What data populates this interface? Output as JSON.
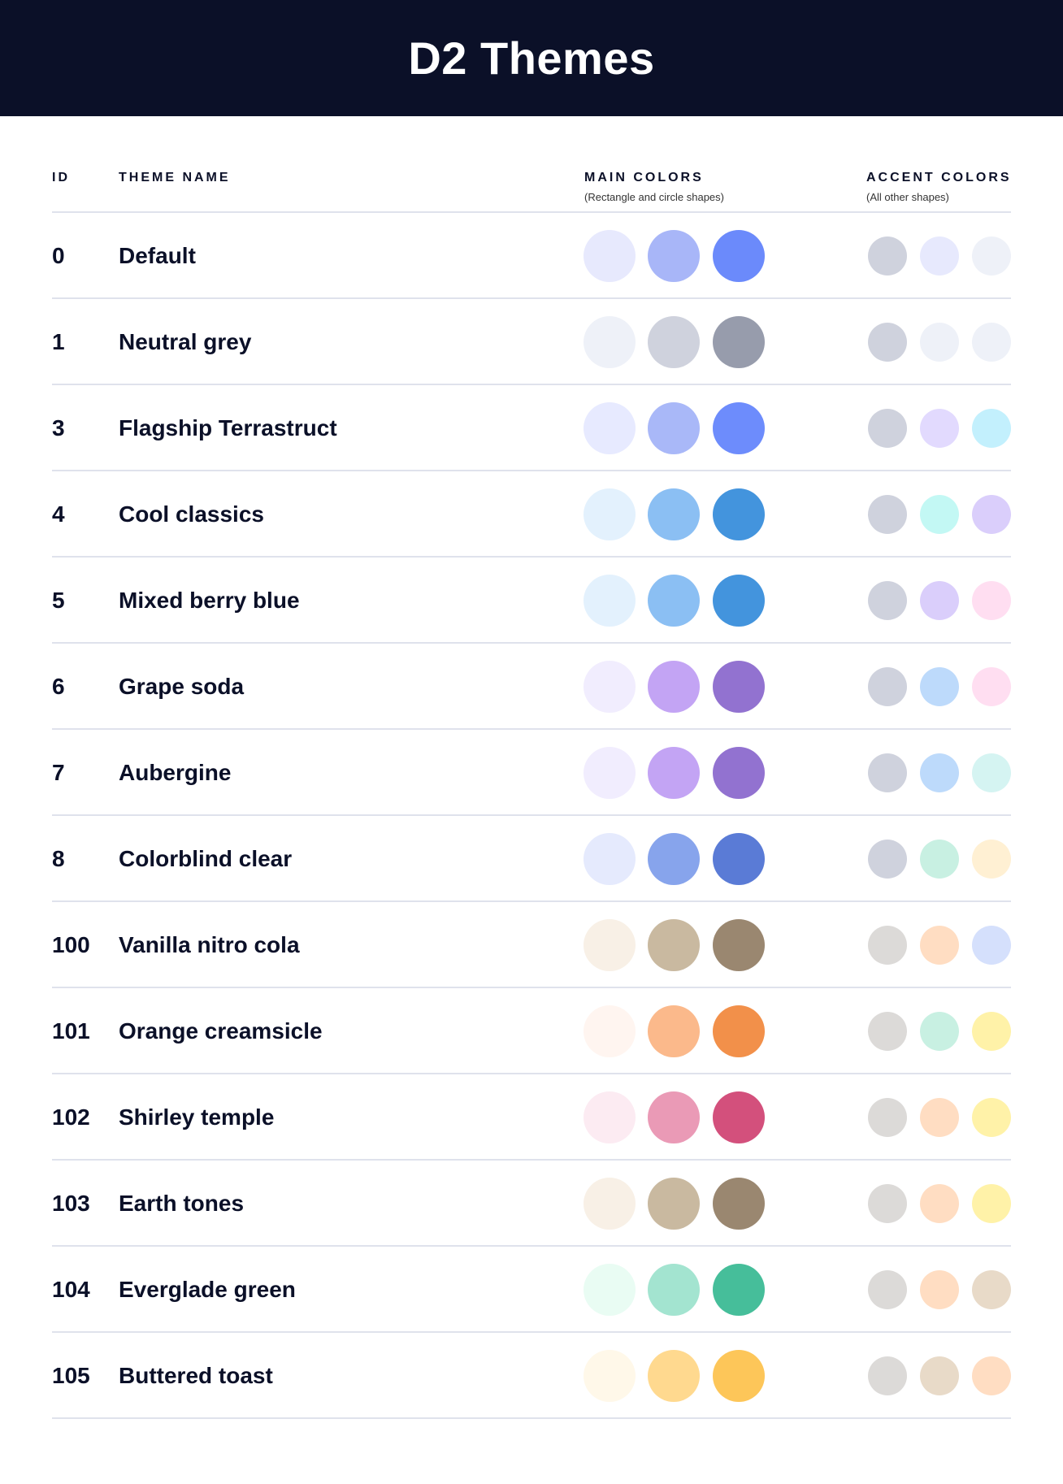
{
  "title": "D2 Themes",
  "columns": {
    "id": "ID",
    "name": "THEME NAME",
    "main": "MAIN COLORS",
    "main_sub": "(Rectangle and circle shapes)",
    "accent": "ACCENT COLORS",
    "accent_sub": "(All other shapes)"
  },
  "themes": [
    {
      "id": "0",
      "name": "Default",
      "main": [
        "#E7E9FD",
        "#A8B6F8",
        "#6B8AFB"
      ],
      "accent": [
        "#CFD2DD",
        "#E7E9FD",
        "#EEF1F8"
      ]
    },
    {
      "id": "1",
      "name": "Neutral grey",
      "main": [
        "#EEF1F8",
        "#CFD2DD",
        "#979CAC"
      ],
      "accent": [
        "#CFD2DD",
        "#EEF1F8",
        "#EEF1F8"
      ]
    },
    {
      "id": "3",
      "name": "Flagship Terrastruct",
      "main": [
        "#E7EAFF",
        "#A9B8F8",
        "#6D8CFC"
      ],
      "accent": [
        "#CFD2DD",
        "#E2DAFE",
        "#C3F0FD"
      ]
    },
    {
      "id": "4",
      "name": "Cool classics",
      "main": [
        "#E3F1FD",
        "#8BBFF3",
        "#4394DD"
      ],
      "accent": [
        "#CFD2DD",
        "#C3F8F4",
        "#DACEFB"
      ]
    },
    {
      "id": "5",
      "name": "Mixed berry blue",
      "main": [
        "#E3F1FD",
        "#8BBFF3",
        "#4394DD"
      ],
      "accent": [
        "#CFD2DD",
        "#DACEFB",
        "#FFDEF1"
      ]
    },
    {
      "id": "6",
      "name": "Grape soda",
      "main": [
        "#F1EDFE",
        "#C3A4F4",
        "#9272D0"
      ],
      "accent": [
        "#CFD2DD",
        "#BDDAFB",
        "#FFDEF1"
      ]
    },
    {
      "id": "7",
      "name": "Aubergine",
      "main": [
        "#F1EDFE",
        "#C3A4F4",
        "#9272D0"
      ],
      "accent": [
        "#CFD2DD",
        "#BDDAFB",
        "#D5F4F2"
      ]
    },
    {
      "id": "8",
      "name": "Colorblind clear",
      "main": [
        "#E5EAFD",
        "#87A4EC",
        "#5A7BD6"
      ],
      "accent": [
        "#CFD2DD",
        "#C8F0E2",
        "#FFF0D3"
      ]
    },
    {
      "id": "100",
      "name": "Vanilla nitro cola",
      "main": [
        "#F8F0E6",
        "#C9B9A0",
        "#9A8770"
      ],
      "accent": [
        "#DCDAD8",
        "#FFDDC2",
        "#D5E0FC"
      ]
    },
    {
      "id": "101",
      "name": "Orange creamsicle",
      "main": [
        "#FFF5F0",
        "#FBB98B",
        "#F2904A"
      ],
      "accent": [
        "#DCDAD8",
        "#C8F0E2",
        "#FFF2A8"
      ]
    },
    {
      "id": "102",
      "name": "Shirley temple",
      "main": [
        "#FCEBF2",
        "#EA9AB6",
        "#D3507C"
      ],
      "accent": [
        "#DCDAD8",
        "#FFDDC2",
        "#FFF2A8"
      ]
    },
    {
      "id": "103",
      "name": "Earth tones",
      "main": [
        "#F8F0E6",
        "#C9B9A0",
        "#9A8770"
      ],
      "accent": [
        "#DCDAD8",
        "#FFDDC2",
        "#FFF2A8"
      ]
    },
    {
      "id": "104",
      "name": "Everglade green",
      "main": [
        "#E9FCF3",
        "#A3E4D0",
        "#46BE9A"
      ],
      "accent": [
        "#DCDAD8",
        "#FFDDC2",
        "#E8DAC8"
      ]
    },
    {
      "id": "105",
      "name": "Buttered toast",
      "main": [
        "#FFF8E9",
        "#FFD98F",
        "#FDC659"
      ],
      "accent": [
        "#DCDAD8",
        "#E8DAC8",
        "#FFDDC2"
      ]
    }
  ]
}
